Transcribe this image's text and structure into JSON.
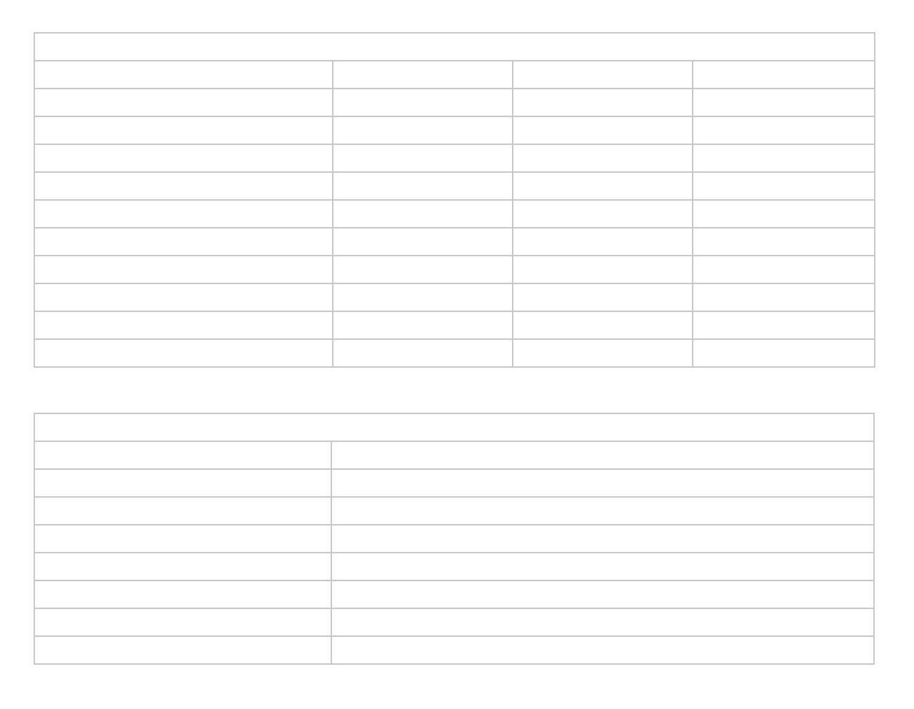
{
  "table1": {
    "title": "",
    "rows": [
      [
        "",
        "",
        "",
        ""
      ],
      [
        "",
        "",
        "",
        ""
      ],
      [
        "",
        "",
        "",
        ""
      ],
      [
        "",
        "",
        "",
        ""
      ],
      [
        "",
        "",
        "",
        ""
      ],
      [
        "",
        "",
        "",
        ""
      ],
      [
        "",
        "",
        "",
        ""
      ],
      [
        "",
        "",
        "",
        ""
      ],
      [
        "",
        "",
        "",
        ""
      ],
      [
        "",
        "",
        "",
        ""
      ],
      [
        "",
        "",
        "",
        ""
      ]
    ]
  },
  "table2": {
    "title": "",
    "rows": [
      [
        "",
        ""
      ],
      [
        "",
        ""
      ],
      [
        "",
        ""
      ],
      [
        "",
        ""
      ],
      [
        "",
        ""
      ],
      [
        "",
        ""
      ],
      [
        "",
        ""
      ],
      [
        "",
        ""
      ]
    ]
  },
  "colors": {
    "border": "#c8c8c8",
    "background": "#ffffff"
  }
}
